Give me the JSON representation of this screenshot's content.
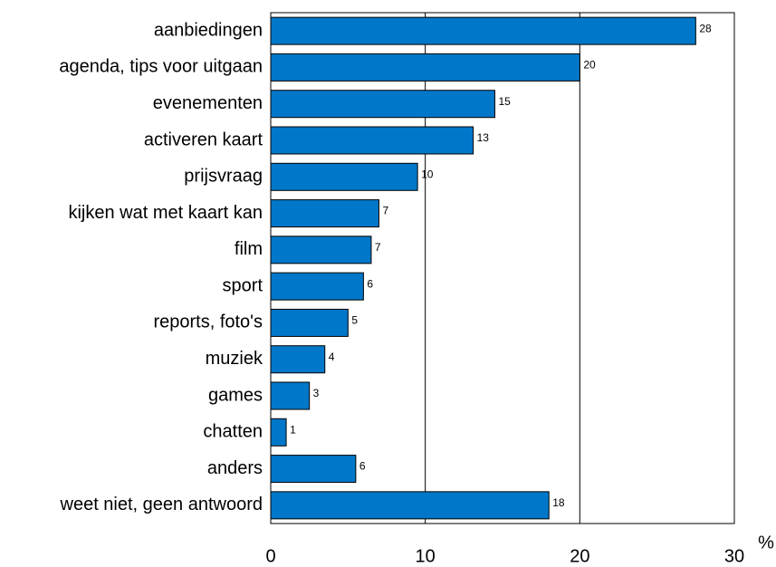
{
  "chart_data": {
    "type": "hbar",
    "categories": [
      "aanbiedingen",
      "agenda, tips voor uitgaan",
      "evenementen",
      "activeren kaart",
      "prijsvraag",
      "kijken wat met kaart kan",
      "film",
      "sport",
      "reports, foto's",
      "muziek",
      "games",
      "chatten",
      "anders",
      "weet niet, geen antwoord"
    ],
    "values": [
      27.5,
      20,
      14.5,
      13.1,
      9.5,
      7,
      6.5,
      6,
      5,
      3.5,
      2.5,
      1,
      5.5,
      18
    ],
    "value_labels": [
      "28",
      "20",
      "15",
      "13",
      "10",
      "7",
      "7",
      "6",
      "5",
      "4",
      "3",
      "1",
      "6",
      "18"
    ],
    "color": "#0077c8",
    "xlabel": "%",
    "xlim": [
      0,
      30
    ],
    "xticks": [
      0,
      10,
      20,
      30
    ],
    "grid": true
  }
}
